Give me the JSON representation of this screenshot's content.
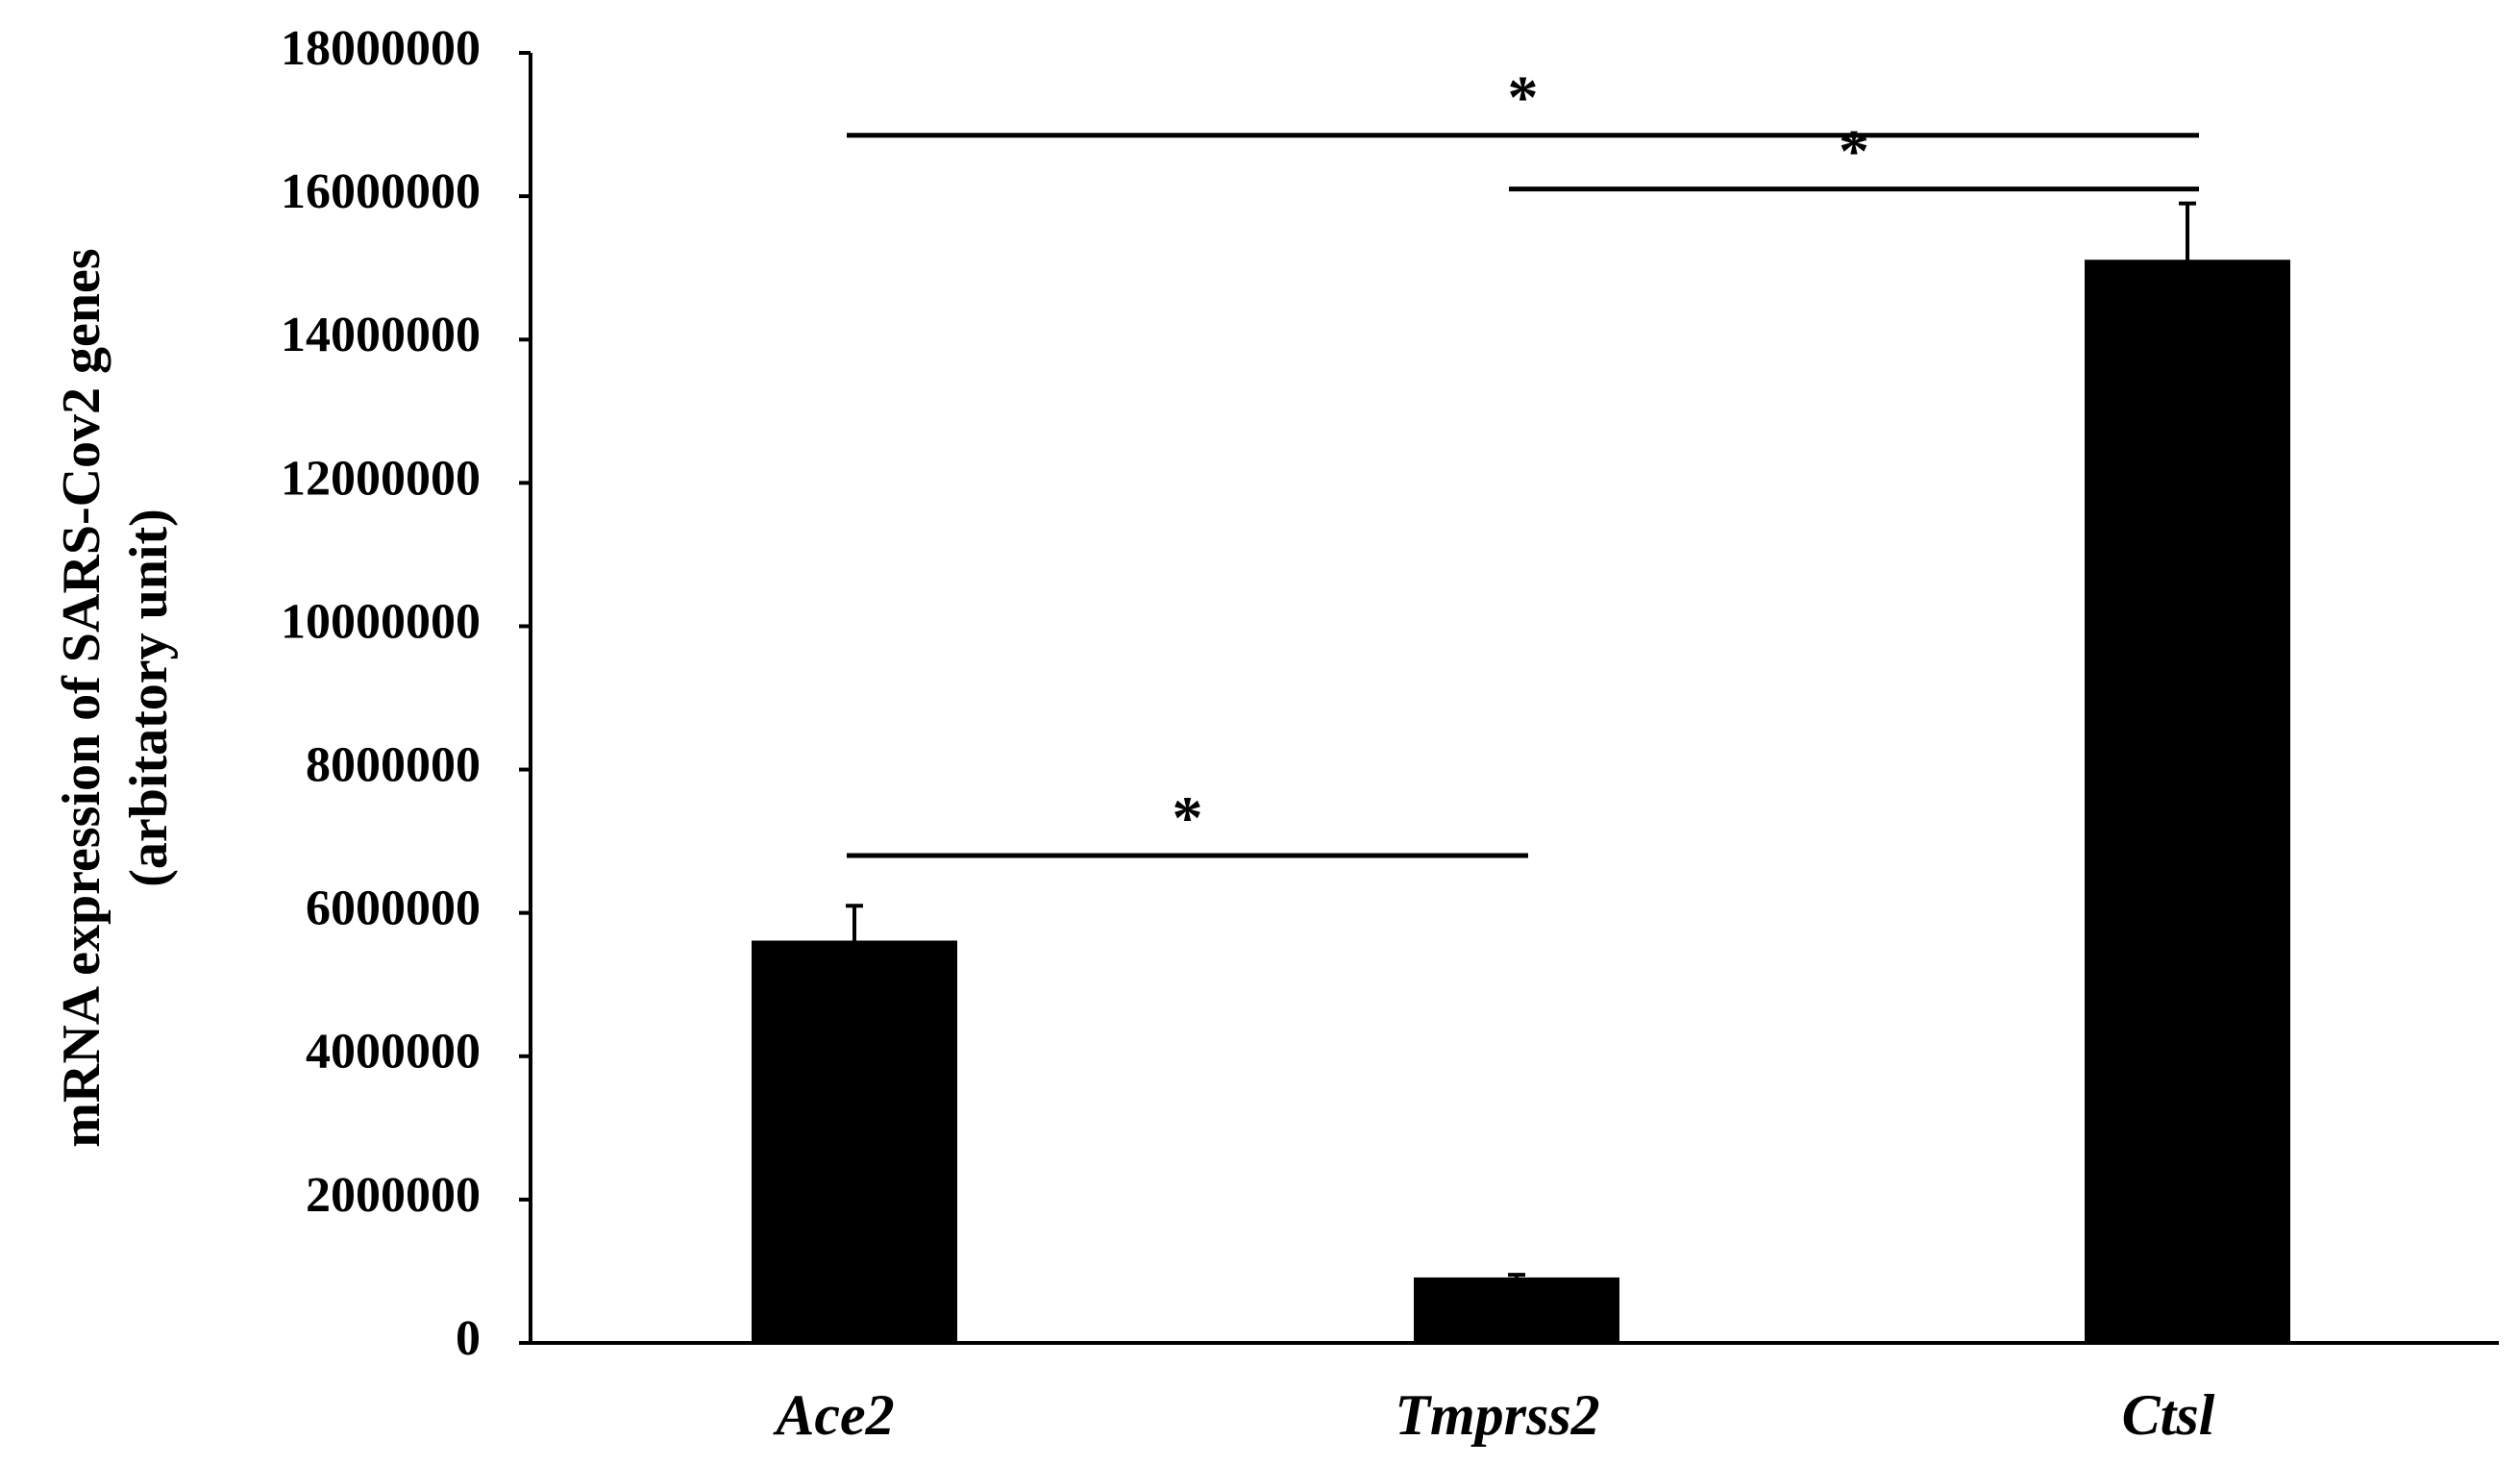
{
  "chart_data": {
    "type": "bar",
    "categories": [
      "Ace2",
      "Tmprss2",
      "Ctsl"
    ],
    "values": [
      5600000,
      900000,
      15100000
    ],
    "error": [
      500000,
      50000,
      800000
    ],
    "ylabel": [
      "mRNA expression of SARS-Cov2 genes",
      "(arbitatory unit)"
    ],
    "xlabel": "",
    "ylim": [
      0,
      18000000
    ],
    "yticks": [
      0,
      2000000,
      4000000,
      6000000,
      8000000,
      10000000,
      12000000,
      14000000,
      16000000,
      18000000
    ],
    "ytick_labels": [
      "0",
      "2000000",
      "4000000",
      "6000000",
      "8000000",
      "10000000",
      "12000000",
      "14000000",
      "16000000",
      "18000000"
    ],
    "grid": false,
    "bar_color": "#000000",
    "significance": [
      {
        "from": "Ace2",
        "to": "Ctsl",
        "label": "*",
        "level": 16850000
      },
      {
        "from": "Tmprss2",
        "to": "Ctsl",
        "label": "*",
        "level": 16100000
      },
      {
        "from": "Ace2",
        "to": "Tmprss2",
        "label": "*",
        "level": 6800000
      }
    ]
  }
}
